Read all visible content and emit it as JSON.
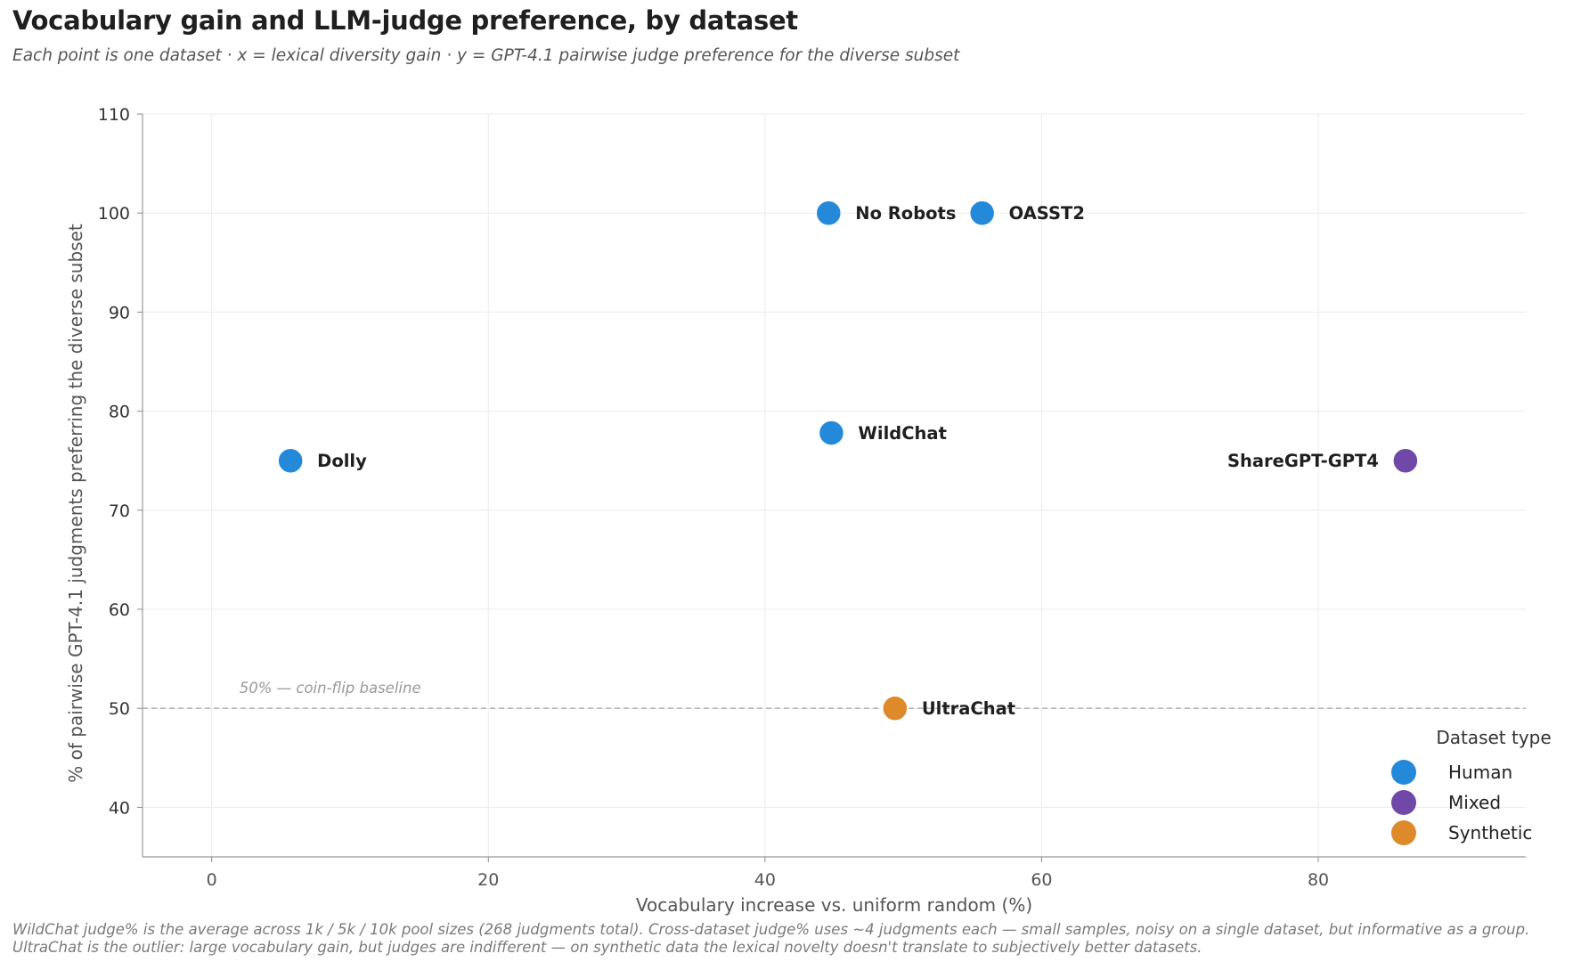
{
  "chart_data": {
    "type": "scatter",
    "title": "Vocabulary gain and LLM-judge preference, by dataset",
    "subtitle": "Each point is one dataset · x = lexical diversity gain · y = GPT-4.1 pairwise judge preference for the diverse subset",
    "xlabel": "Vocabulary increase vs. uniform random (%)",
    "ylabel": "% of pairwise GPT-4.1 judgments preferring the diverse subset",
    "xlim": [
      -5,
      95
    ],
    "ylim": [
      35,
      110
    ],
    "xticks": [
      0,
      20,
      40,
      60,
      80
    ],
    "yticks": [
      40,
      50,
      60,
      70,
      80,
      90,
      100,
      110
    ],
    "grid": true,
    "points": [
      {
        "label": "Dolly",
        "x": 5.7,
        "y": 75,
        "type": "Human"
      },
      {
        "label": "No Robots",
        "x": 44.6,
        "y": 100,
        "type": "Human"
      },
      {
        "label": "OASST2",
        "x": 55.7,
        "y": 100,
        "type": "Human"
      },
      {
        "label": "WildChat",
        "x": 44.8,
        "y": 77.8,
        "type": "Human"
      },
      {
        "label": "ShareGPT-GPT4",
        "x": 86.3,
        "y": 75,
        "type": "Mixed"
      },
      {
        "label": "UltraChat",
        "x": 49.4,
        "y": 50,
        "type": "Synthetic"
      }
    ],
    "reference_line": {
      "y": 50,
      "label": "50% — coin-flip baseline",
      "style": "dashed"
    },
    "legend": {
      "title": "Dataset type",
      "placement": "bottom-right",
      "entries": [
        {
          "name": "Human",
          "color": "#2589d9"
        },
        {
          "name": "Mixed",
          "color": "#7048a8"
        },
        {
          "name": "Synthetic",
          "color": "#de8a2a"
        }
      ]
    }
  },
  "footnote": "WildChat judge% is the average across 1k / 5k / 10k pool sizes (268 judgments total). Cross-dataset judge% uses ~4 judgments each — small samples, noisy on a single dataset, but informative as a group. UltraChat is the outlier: large vocabulary gain, but judges are indifferent — on synthetic data the lexical novelty doesn't translate to subjectively better datasets."
}
